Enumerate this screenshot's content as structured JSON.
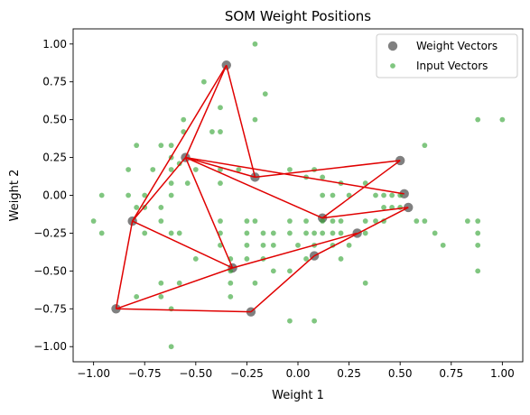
{
  "chart_data": {
    "type": "scatter",
    "title": "SOM Weight Positions",
    "xlabel": "Weight 1",
    "ylabel": "Weight 2",
    "xlim": [
      -1.1,
      1.1
    ],
    "ylim": [
      -1.1,
      1.1
    ],
    "xticks": [
      -1.0,
      -0.75,
      -0.5,
      -0.25,
      0.0,
      0.25,
      0.5,
      0.75,
      1.0
    ],
    "xtick_labels": [
      "−1.00",
      "−0.75",
      "−0.50",
      "−0.25",
      "0.00",
      "0.25",
      "0.50",
      "0.75",
      "1.00"
    ],
    "yticks": [
      -1.0,
      -0.75,
      -0.5,
      -0.25,
      0.0,
      0.25,
      0.5,
      0.75,
      1.0
    ],
    "ytick_labels": [
      "−1.00",
      "−0.75",
      "−0.50",
      "−0.25",
      "0.00",
      "0.25",
      "0.50",
      "0.75",
      "1.00"
    ],
    "grid": false,
    "legend_position": "top-right",
    "colors": {
      "weight_vectors": "#808080",
      "input_vectors": "#2ca02c",
      "connections": "#e00000"
    },
    "series": [
      {
        "name": "Weight Vectors",
        "marker": "large-circle",
        "points": [
          [
            -0.35,
            0.86
          ],
          [
            -0.21,
            0.12
          ],
          [
            -0.55,
            0.25
          ],
          [
            -0.81,
            -0.17
          ],
          [
            -0.89,
            -0.75
          ],
          [
            -0.23,
            -0.77
          ],
          [
            -0.32,
            -0.48
          ],
          [
            0.12,
            -0.15
          ],
          [
            0.08,
            -0.4
          ],
          [
            0.29,
            -0.25
          ],
          [
            0.5,
            0.23
          ],
          [
            0.52,
            0.01
          ],
          [
            0.54,
            -0.08
          ]
        ]
      },
      {
        "name": "Input Vectors",
        "marker": "small-circle",
        "points": [
          [
            -0.21,
            1.0
          ],
          [
            -0.46,
            0.75
          ],
          [
            -0.38,
            0.58
          ],
          [
            -0.16,
            0.67
          ],
          [
            -0.21,
            0.5
          ],
          [
            -0.56,
            0.5
          ],
          [
            -0.38,
            0.42
          ],
          [
            -0.42,
            0.42
          ],
          [
            -0.56,
            0.42
          ],
          [
            -0.79,
            0.33
          ],
          [
            -0.67,
            0.33
          ],
          [
            -0.62,
            0.33
          ],
          [
            -0.62,
            0.25
          ],
          [
            -0.62,
            0.17
          ],
          [
            -0.58,
            0.21
          ],
          [
            -0.5,
            0.17
          ],
          [
            -0.38,
            0.17
          ],
          [
            -0.71,
            0.17
          ],
          [
            -0.83,
            0.17
          ],
          [
            -0.62,
            0.08
          ],
          [
            -0.54,
            0.08
          ],
          [
            -0.96,
            0.0
          ],
          [
            -0.83,
            0.0
          ],
          [
            -0.75,
            0.0
          ],
          [
            -0.75,
            -0.08
          ],
          [
            -0.67,
            -0.08
          ],
          [
            -0.62,
            0.0
          ],
          [
            -0.67,
            -0.17
          ],
          [
            -0.79,
            -0.08
          ],
          [
            -1.0,
            -0.17
          ],
          [
            -0.96,
            -0.25
          ],
          [
            -0.75,
            -0.25
          ],
          [
            -0.58,
            -0.25
          ],
          [
            -0.38,
            -0.17
          ],
          [
            -0.25,
            -0.17
          ],
          [
            -0.25,
            -0.25
          ],
          [
            -0.25,
            -0.33
          ],
          [
            -0.25,
            -0.42
          ],
          [
            -0.17,
            -0.25
          ],
          [
            -0.17,
            -0.33
          ],
          [
            -0.17,
            -0.42
          ],
          [
            -0.12,
            -0.25
          ],
          [
            -0.12,
            -0.33
          ],
          [
            -0.04,
            -0.25
          ],
          [
            -0.04,
            -0.17
          ],
          [
            0.0,
            -0.33
          ],
          [
            0.04,
            -0.25
          ],
          [
            0.04,
            -0.17
          ],
          [
            0.08,
            -0.25
          ],
          [
            0.08,
            -0.33
          ],
          [
            0.12,
            -0.17
          ],
          [
            0.12,
            -0.25
          ],
          [
            0.17,
            -0.17
          ],
          [
            0.17,
            -0.25
          ],
          [
            0.17,
            -0.33
          ],
          [
            0.21,
            -0.17
          ],
          [
            0.21,
            -0.25
          ],
          [
            0.21,
            -0.42
          ],
          [
            0.25,
            -0.33
          ],
          [
            0.33,
            -0.17
          ],
          [
            0.33,
            -0.25
          ],
          [
            0.38,
            -0.17
          ],
          [
            0.42,
            -0.08
          ],
          [
            0.42,
            -0.17
          ],
          [
            0.46,
            -0.08
          ],
          [
            0.5,
            -0.08
          ],
          [
            0.58,
            -0.17
          ],
          [
            0.62,
            -0.17
          ],
          [
            0.67,
            -0.25
          ],
          [
            0.71,
            -0.33
          ],
          [
            0.83,
            -0.17
          ],
          [
            0.88,
            -0.25
          ],
          [
            0.88,
            -0.33
          ],
          [
            0.88,
            -0.5
          ],
          [
            0.88,
            -0.17
          ],
          [
            0.62,
            0.33
          ],
          [
            0.88,
            0.5
          ],
          [
            1.0,
            0.5
          ],
          [
            0.42,
            0.0
          ],
          [
            0.38,
            0.0
          ],
          [
            0.46,
            0.0
          ],
          [
            0.5,
            0.0
          ],
          [
            0.33,
            0.08
          ],
          [
            0.25,
            0.0
          ],
          [
            0.21,
            0.08
          ],
          [
            0.17,
            0.0
          ],
          [
            0.12,
            0.0
          ],
          [
            0.12,
            0.12
          ],
          [
            0.08,
            0.17
          ],
          [
            0.04,
            0.12
          ],
          [
            -0.04,
            0.17
          ],
          [
            -0.29,
            0.17
          ],
          [
            -0.38,
            0.08
          ],
          [
            -0.62,
            -0.25
          ],
          [
            -0.5,
            -0.42
          ],
          [
            -0.38,
            -0.33
          ],
          [
            -0.33,
            -0.42
          ],
          [
            -0.33,
            -0.5
          ],
          [
            -0.33,
            -0.58
          ],
          [
            -0.33,
            -0.67
          ],
          [
            -0.21,
            -0.58
          ],
          [
            -0.12,
            -0.5
          ],
          [
            -0.04,
            -0.5
          ],
          [
            0.04,
            -0.42
          ],
          [
            -0.58,
            -0.58
          ],
          [
            -0.67,
            -0.58
          ],
          [
            -0.67,
            -0.67
          ],
          [
            -0.79,
            -0.67
          ],
          [
            -0.62,
            -0.75
          ],
          [
            -0.62,
            -1.0
          ],
          [
            -0.04,
            -0.83
          ],
          [
            0.08,
            -0.83
          ],
          [
            0.33,
            -0.58
          ],
          [
            -0.38,
            -0.25
          ],
          [
            -0.21,
            -0.17
          ]
        ]
      }
    ],
    "connections": [
      [
        0,
        1
      ],
      [
        0,
        2
      ],
      [
        0,
        3
      ],
      [
        2,
        3
      ],
      [
        2,
        1
      ],
      [
        2,
        6
      ],
      [
        2,
        7
      ],
      [
        2,
        11
      ],
      [
        3,
        4
      ],
      [
        3,
        6
      ],
      [
        4,
        5
      ],
      [
        5,
        8
      ],
      [
        6,
        9
      ],
      [
        8,
        12
      ],
      [
        1,
        10
      ],
      [
        7,
        10
      ],
      [
        7,
        12
      ],
      [
        4,
        6
      ]
    ]
  },
  "legend": {
    "items": [
      {
        "label": "Weight Vectors",
        "marker": "large-circle"
      },
      {
        "label": "Input Vectors",
        "marker": "small-circle"
      }
    ]
  }
}
